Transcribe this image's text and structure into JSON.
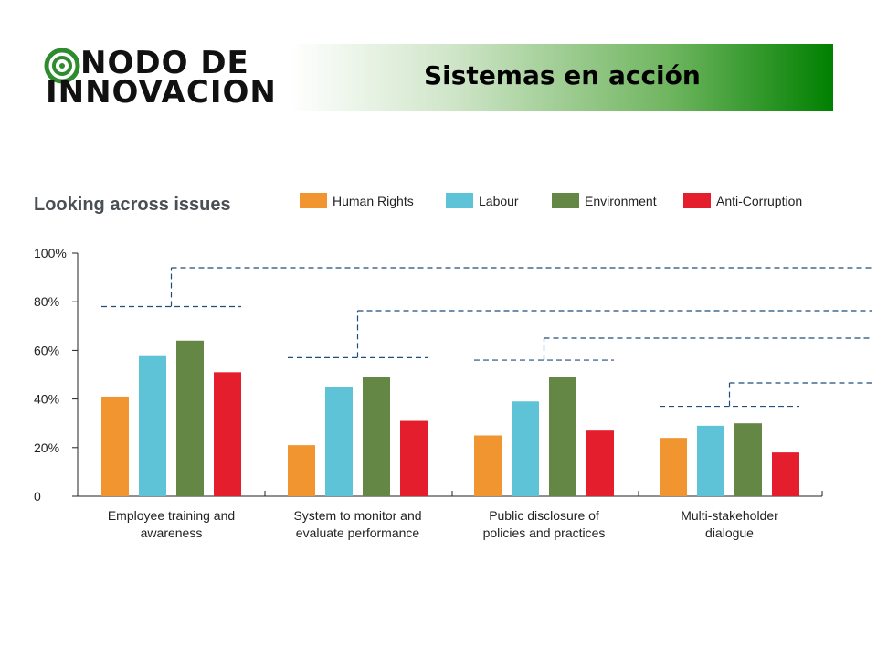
{
  "logo": {
    "line1": "NODO DE",
    "line2": "INNOVACION"
  },
  "banner": {
    "title": "Sistemas en acción"
  },
  "chart_data": {
    "type": "bar",
    "title": "Looking across issues",
    "categories": [
      [
        "Employee training and",
        "awareness"
      ],
      [
        "System to monitor and",
        "evaluate performance"
      ],
      [
        "Public disclosure of",
        "policies and practices"
      ],
      [
        "Multi-stakeholder",
        "dialogue"
      ]
    ],
    "series": [
      {
        "name": "Human Rights",
        "color": "#f0952f",
        "values": [
          41,
          21,
          25,
          24
        ]
      },
      {
        "name": "Labour",
        "color": "#5ec3d6",
        "values": [
          58,
          45,
          39,
          29
        ]
      },
      {
        "name": "Environment",
        "color": "#658746",
        "values": [
          64,
          49,
          49,
          30
        ]
      },
      {
        "name": "Anti-Corruption",
        "color": "#e41e2d",
        "values": [
          51,
          31,
          27,
          18
        ]
      }
    ],
    "ylim": [
      0,
      100
    ],
    "yticks": [
      "0",
      "20%",
      "40%",
      "60%",
      "80%",
      "100%"
    ],
    "ytick_values": [
      0,
      20,
      40,
      60,
      80,
      100
    ],
    "annotations": [
      {
        "category": 0,
        "value": 78
      },
      {
        "category": 1,
        "value": 57
      },
      {
        "category": 2,
        "value": 56
      },
      {
        "category": 3,
        "value": 37
      }
    ],
    "legend_position": "top-right",
    "grid": false
  }
}
